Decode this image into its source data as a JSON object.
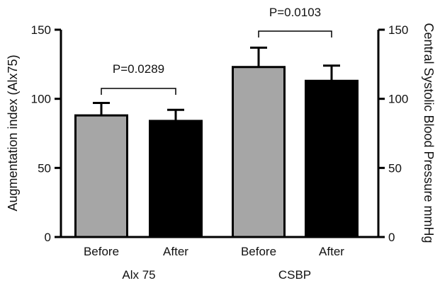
{
  "chart_data": {
    "type": "bar",
    "ylabel_left": "Augmentation index (Alx75)",
    "ylabel_right": "Central Systolic Blood Pressure mmHg",
    "ylim": [
      0,
      150
    ],
    "yticks": [
      0,
      50,
      100,
      150
    ],
    "groups": [
      {
        "label": "Alx 75",
        "bars": [
          {
            "category": "Before",
            "value": 88,
            "error": 9,
            "color": "#a6a6a6"
          },
          {
            "category": "After",
            "value": 84,
            "error": 8,
            "color": "#000000"
          }
        ],
        "p_value": "P=0.0289"
      },
      {
        "label": "CSBP",
        "bars": [
          {
            "category": "Before",
            "value": 123,
            "error": 14,
            "color": "#a6a6a6"
          },
          {
            "category": "After",
            "value": 113,
            "error": 11,
            "color": "#000000"
          }
        ],
        "p_value": "P=0.0103"
      }
    ],
    "grid": false,
    "legend": "none"
  }
}
